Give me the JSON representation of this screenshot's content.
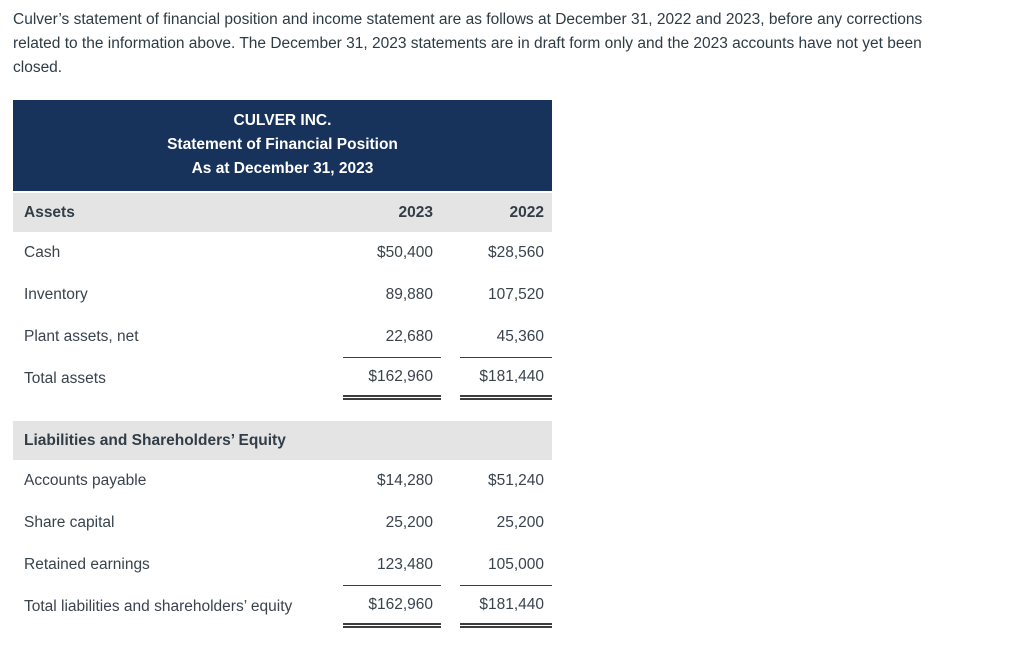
{
  "intro": {
    "lines": [
      "Culver’s statement of financial position and income statement are as follows at December 31, 2022 and 2023, before any corrections",
      "related to the information above. The December 31, 2023 statements are in draft form only and the 2023 accounts have not yet been",
      "closed."
    ]
  },
  "statement": {
    "title_lines": [
      "CULVER INC.",
      "Statement of Financial Position",
      "As at December 31, 2023"
    ],
    "columns": [
      "2023",
      "2022"
    ],
    "sections": [
      {
        "header": "Assets",
        "rows": [
          {
            "label": "Cash",
            "v2023": "$50,400",
            "v2022": "$28,560"
          },
          {
            "label": "Inventory",
            "v2023": "89,880",
            "v2022": "107,520"
          },
          {
            "label": "Plant assets, net",
            "v2023": "22,680",
            "v2022": "45,360"
          },
          {
            "label": "Total assets",
            "v2023": "$162,960",
            "v2022": "$181,440"
          }
        ]
      },
      {
        "header": "Liabilities and Shareholders’ Equity",
        "rows": [
          {
            "label": "Accounts payable",
            "v2023": "$14,280",
            "v2022": "$51,240"
          },
          {
            "label": "Share capital",
            "v2023": "25,200",
            "v2022": "25,200"
          },
          {
            "label": "Retained earnings",
            "v2023": "123,480",
            "v2022": "105,000"
          },
          {
            "label": "Total liabilities and shareholders’ equity",
            "v2023": "$162,960",
            "v2022": "$181,440"
          }
        ]
      }
    ]
  },
  "colors": {
    "header_bg": "#17335c",
    "section_header_bg": "#e4e4e4",
    "body_text": "#2d3b45",
    "rule": "#3d3d3d"
  }
}
